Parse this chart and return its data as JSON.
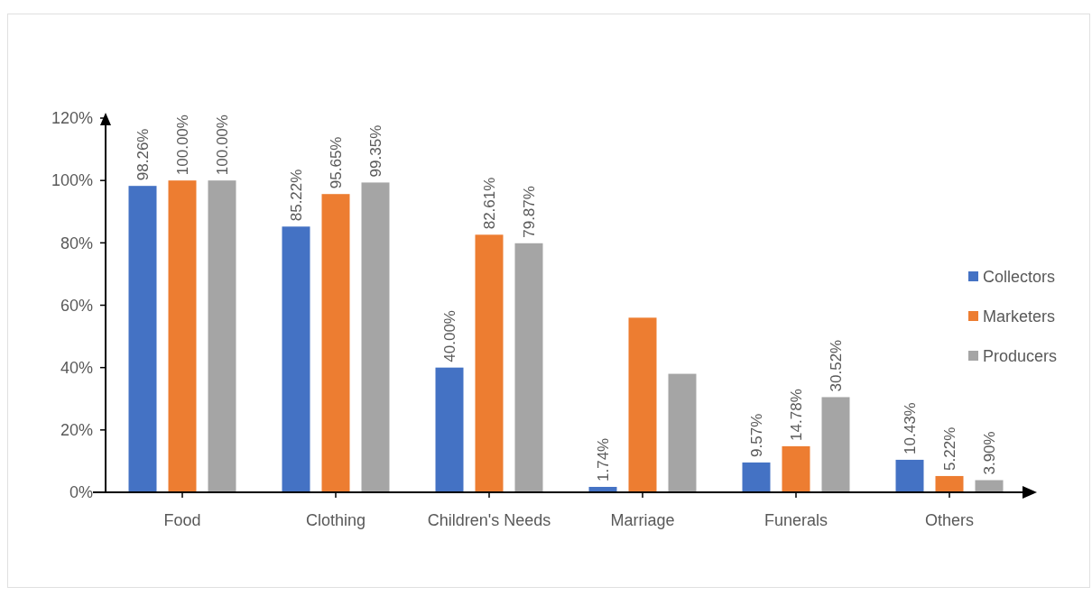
{
  "chart_data": {
    "type": "bar",
    "categories": [
      "Food",
      "Clothing",
      "Children's Needs",
      "Marriage",
      "Funerals",
      "Others"
    ],
    "series": [
      {
        "name": "Collectors",
        "color": "#4472c4",
        "values": [
          98.26,
          85.22,
          40.0,
          1.74,
          9.57,
          10.43
        ],
        "value_labels": [
          "98.26%",
          "85.22%",
          "40.00%",
          "1.74%",
          "9.57%",
          "10.43%"
        ]
      },
      {
        "name": "Marketers",
        "color": "#ed7d31",
        "values": [
          100.0,
          95.65,
          82.61,
          56,
          14.78,
          5.22
        ],
        "value_labels": [
          "100.00%",
          "95.65%",
          "82.61%",
          null,
          "14.78%",
          "5.22%"
        ]
      },
      {
        "name": "Producers",
        "color": "#a5a5a5",
        "values": [
          100.0,
          99.35,
          79.87,
          38,
          30.52,
          3.9
        ],
        "value_labels": [
          "100.00%",
          "99.35%",
          "79.87%",
          null,
          "30.52%",
          "3.90%"
        ]
      }
    ],
    "ylim": [
      0,
      120
    ],
    "yticks": [
      {
        "value": 0,
        "label": "0%"
      },
      {
        "value": 20,
        "label": "20%"
      },
      {
        "value": 40,
        "label": "40%"
      },
      {
        "value": 60,
        "label": "60%"
      },
      {
        "value": 80,
        "label": "80%"
      },
      {
        "value": 100,
        "label": "100%"
      },
      {
        "value": 120,
        "label": "120%"
      }
    ],
    "legend": "right"
  }
}
